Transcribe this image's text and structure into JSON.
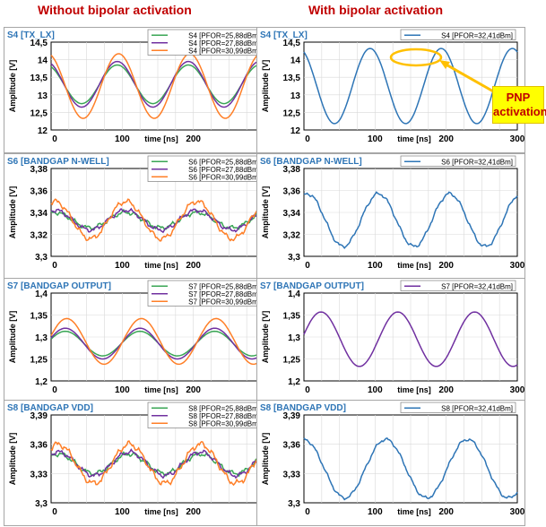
{
  "headings": {
    "left": "Without bipolar activation",
    "right": "With bipolar activation"
  },
  "callout": {
    "line1": "PNP",
    "line2": "activation"
  },
  "colors": {
    "s25": "#3aa655",
    "s27": "#7030a0",
    "s30": "#ff7f27",
    "s32_blue": "#2e75b6",
    "s32_purple": "#7030a0",
    "title": "#2e75b6",
    "highlight": "#ffc000"
  },
  "chart_data": [
    {
      "type": "line",
      "title": "S4 [TX_LX]",
      "ylabel": "Amplitude [V]",
      "xlabel": "time [ns]",
      "xlim": [
        0,
        300
      ],
      "ylim": [
        12,
        14.5
      ],
      "yticks": [
        "12",
        "12,5",
        "13",
        "13,5",
        "14",
        "14,5"
      ],
      "xticks": [
        "0",
        "100",
        "200",
        "300"
      ],
      "series": [
        {
          "name": "S4 [PFOR=25,88dBm]",
          "color": "s25",
          "mean": 13.3,
          "amp": 0.55,
          "period": 100,
          "peak": 93,
          "noise": 0
        },
        {
          "name": "S4 [PFOR=27,88dBm]",
          "color": "s27",
          "mean": 13.3,
          "amp": 0.65,
          "period": 100,
          "peak": 93,
          "noise": 0
        },
        {
          "name": "S4 [PFOR=30,99dBm]",
          "color": "s30",
          "mean": 13.25,
          "amp": 0.92,
          "period": 100,
          "peak": 95,
          "noise": 0
        }
      ]
    },
    {
      "type": "line",
      "title": "S4 [TX_LX]",
      "ylabel": "Amplitude [V]",
      "xlabel": "time [ns]",
      "xlim": [
        0,
        300
      ],
      "ylim": [
        12,
        14.5
      ],
      "yticks": [
        "12",
        "12,5",
        "13",
        "13,5",
        "14",
        "14,5"
      ],
      "xticks": [
        "0",
        "100",
        "200",
        "300"
      ],
      "series": [
        {
          "name": "S4 [PFOR=32,41dBm]",
          "color": "s32_blue",
          "mean": 13.25,
          "amp": 1.07,
          "period": 100,
          "peak": 93,
          "noise": 0
        }
      ]
    },
    {
      "type": "line",
      "title": "S6 [BANDGAP N-WELL]",
      "ylabel": "Amplitude [V]",
      "xlabel": "time [ns]",
      "xlim": [
        0,
        300
      ],
      "ylim": [
        3.3,
        3.38
      ],
      "yticks": [
        "3,3",
        "3,32",
        "3,34",
        "3,36",
        "3,38"
      ],
      "xticks": [
        "0",
        "100",
        "200",
        "300"
      ],
      "series": [
        {
          "name": "S6 [PFOR=25,88dBm]",
          "color": "s25",
          "mean": 3.333,
          "amp": 0.007,
          "period": 100,
          "peak": 105,
          "noise": 0.0025
        },
        {
          "name": "S6 [PFOR=27,88dBm]",
          "color": "s27",
          "mean": 3.333,
          "amp": 0.009,
          "period": 100,
          "peak": 105,
          "noise": 0.0025
        },
        {
          "name": "S6 [PFOR=30,99dBm]",
          "color": "s30",
          "mean": 3.333,
          "amp": 0.017,
          "period": 100,
          "peak": 105,
          "noise": 0.003
        }
      ]
    },
    {
      "type": "line",
      "title": "S6 [BANDGAP N-WELL]",
      "ylabel": "Amplitude [V]",
      "xlabel": "time [ns]",
      "xlim": [
        0,
        300
      ],
      "ylim": [
        3.3,
        3.38
      ],
      "yticks": [
        "3,3",
        "3,32",
        "3,34",
        "3,36",
        "3,38"
      ],
      "xticks": [
        "0",
        "100",
        "200",
        "300"
      ],
      "series": [
        {
          "name": "S6 [PFOR=32,41dBm]",
          "color": "s32_blue",
          "mean": 3.333,
          "amp": 0.024,
          "period": 100,
          "peak": 105,
          "noise": 0.002
        }
      ]
    },
    {
      "type": "line",
      "title": "S7 [BANDGAP OUTPUT]",
      "ylabel": "Amplitude [V]",
      "xlabel": "time [ns]",
      "xlim": [
        0,
        300
      ],
      "ylim": [
        1.2,
        1.4
      ],
      "yticks": [
        "1,2",
        "1,25",
        "1,3",
        "1,35",
        "1,4"
      ],
      "xticks": [
        "0",
        "100",
        "200",
        "300"
      ],
      "series": [
        {
          "name": "S7 [PFOR=25,88dBm]",
          "color": "s25",
          "mean": 1.285,
          "amp": 0.028,
          "period": 105,
          "peak": 20,
          "noise": 0
        },
        {
          "name": "S7 [PFOR=27,88dBm]",
          "color": "s27",
          "mean": 1.285,
          "amp": 0.035,
          "period": 105,
          "peak": 20,
          "noise": 0
        },
        {
          "name": "S7 [PFOR=30,99dBm]",
          "color": "s30",
          "mean": 1.29,
          "amp": 0.052,
          "period": 105,
          "peak": 22,
          "noise": 0
        }
      ]
    },
    {
      "type": "line",
      "title": "S7 [BANDGAP OUTPUT]",
      "ylabel": "Amplitude [V]",
      "xlabel": "time [ns]",
      "xlim": [
        0,
        300
      ],
      "ylim": [
        1.2,
        1.4
      ],
      "yticks": [
        "1,2",
        "1,25",
        "1,3",
        "1,35",
        "1,4"
      ],
      "xticks": [
        "0",
        "100",
        "200",
        "300"
      ],
      "series": [
        {
          "name": "S7 [PFOR=32,41dBm]",
          "color": "s32_purple",
          "mean": 1.295,
          "amp": 0.062,
          "period": 108,
          "peak": 24,
          "noise": 0
        }
      ]
    },
    {
      "type": "line",
      "title": "S8 [BANDGAP VDD]",
      "ylabel": "Amplitude [V]",
      "xlabel": "time [ns]",
      "xlim": [
        0,
        300
      ],
      "ylim": [
        3.3,
        3.39
      ],
      "yticks": [
        "3,3",
        "3,33",
        "3,36",
        "3,39"
      ],
      "xticks": [
        "0",
        "100",
        "200",
        "300"
      ],
      "series": [
        {
          "name": "S8 [PFOR=25,88dBm]",
          "color": "s25",
          "mean": 3.34,
          "amp": 0.01,
          "period": 100,
          "peak": 110,
          "noise": 0.003
        },
        {
          "name": "S8 [PFOR=27,88dBm]",
          "color": "s27",
          "mean": 3.34,
          "amp": 0.012,
          "period": 100,
          "peak": 110,
          "noise": 0.003
        },
        {
          "name": "S8 [PFOR=30,99dBm]",
          "color": "s30",
          "mean": 3.34,
          "amp": 0.02,
          "period": 100,
          "peak": 110,
          "noise": 0.004
        }
      ]
    },
    {
      "type": "line",
      "title": "S8 [BANDGAP VDD]",
      "ylabel": "Amplitude [V]",
      "xlabel": "time [ns]",
      "xlim": [
        0,
        300
      ],
      "ylim": [
        3.3,
        3.39
      ],
      "yticks": [
        "3,3",
        "3,33",
        "3,36",
        "3,39"
      ],
      "xticks": [
        "0",
        "100",
        "200",
        "300"
      ],
      "series": [
        {
          "name": "S8 [PFOR=32,41dBm]",
          "color": "s32_blue",
          "mean": 3.335,
          "amp": 0.03,
          "period": 115,
          "peak": 115,
          "noise": 0.002
        }
      ]
    }
  ]
}
